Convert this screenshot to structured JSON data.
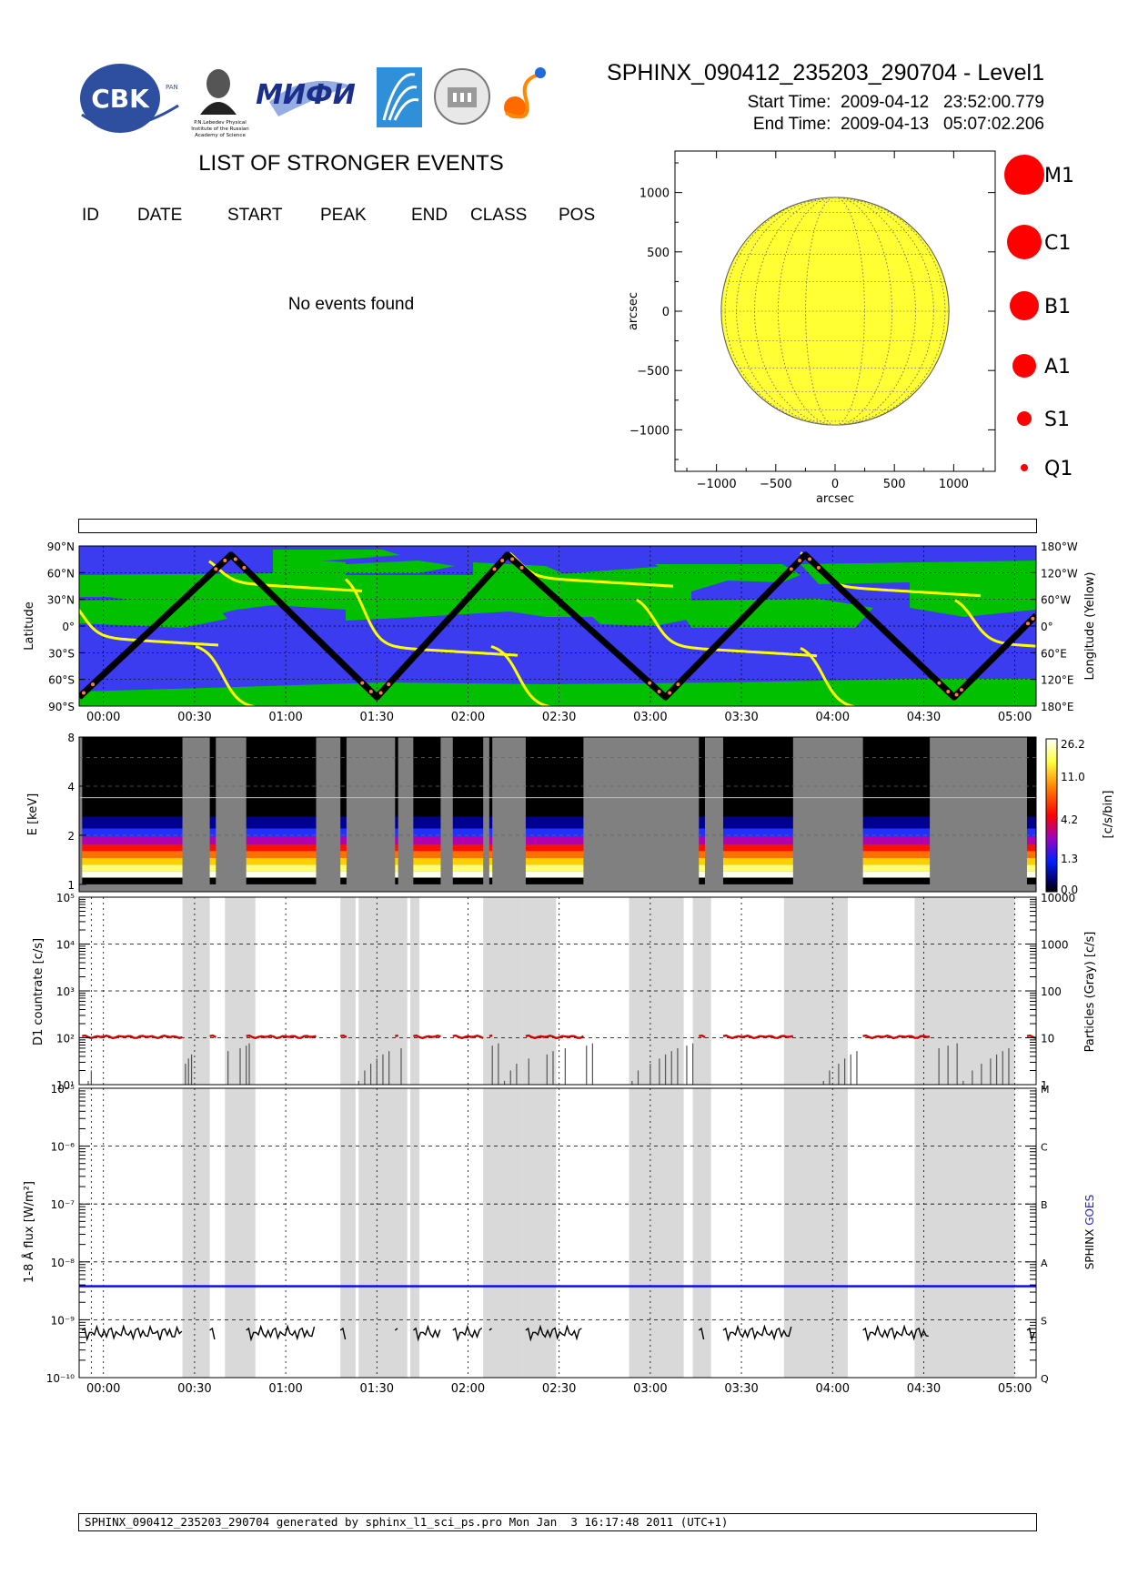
{
  "header": {
    "title": "SPHINX_090412_235203_290704 - Level1",
    "start_label": "Start Time:",
    "start_value": "2009-04-12   23:52:00.779",
    "end_label": "End Time:",
    "end_value": "2009-04-13   05:07:02.206"
  },
  "logos": {
    "cbk_text": "CBK",
    "cbk_pan": "PAN",
    "lebedev_caption": [
      "P.N.Lebedev Physical",
      "Institute of the Russian",
      "Academy of Science"
    ],
    "mifi_text": "МИФИ"
  },
  "events": {
    "title": "LIST OF STRONGER EVENTS",
    "columns": [
      "ID",
      "DATE",
      "START",
      "PEAK",
      "END",
      "CLASS",
      "POS"
    ],
    "empty_message": "No events found"
  },
  "sun_plot": {
    "xlabel": "arcsec",
    "ylabel": "arcsec",
    "ticks": [
      "-1000",
      "-500",
      "0",
      "500",
      "1000"
    ],
    "disk_color": "#ffff33"
  },
  "legend": {
    "items": [
      "M1",
      "C1",
      "B1",
      "A1",
      "S1",
      "Q1"
    ],
    "color": "#ff0000"
  },
  "time_axis": {
    "labels": [
      "00:00",
      "00:30",
      "01:00",
      "01:30",
      "02:00",
      "02:30",
      "03:00",
      "03:30",
      "04:00",
      "04:30",
      "05:00"
    ]
  },
  "chart_data": [
    {
      "type": "line",
      "name": "orbit",
      "ylabel": "Latitude",
      "y2label": "Longitude (Yellow)",
      "yticks": [
        "90°N",
        "60°N",
        "30°N",
        "0°",
        "30°S",
        "60°S",
        "90°S"
      ],
      "y2ticks": [
        "180°W",
        "120°W",
        "60°W",
        "0°",
        "60°E",
        "120°E",
        "180°E"
      ],
      "latitude_turning_points": [
        {
          "t": "23:52",
          "lat": -80
        },
        {
          "t": "00:42",
          "lat": 80
        },
        {
          "t": "01:30",
          "lat": -80
        },
        {
          "t": "02:13",
          "lat": 80
        },
        {
          "t": "03:05",
          "lat": -80
        },
        {
          "t": "03:51",
          "lat": 80
        },
        {
          "t": "04:40",
          "lat": -80
        },
        {
          "t": "05:07",
          "lat": 12
        }
      ],
      "colors": {
        "background": "#3b3bf0",
        "saa": "#00c000",
        "track": "#000000",
        "longitude": "#ffff00"
      }
    },
    {
      "type": "heatmap",
      "name": "spectrogram",
      "ylabel": "E [keV]",
      "yticks": [
        "1",
        "2",
        "4",
        "8"
      ],
      "colorbar_label": "[c/s/bin]",
      "colorbar_ticks": [
        "0.0",
        "1.3",
        "4.2",
        "11.0",
        "26.2"
      ],
      "data_intervals": [
        {
          "start": "23:53",
          "end": "00:26"
        },
        {
          "start": "00:35",
          "end": "00:37"
        },
        {
          "start": "00:47",
          "end": "01:10"
        },
        {
          "start": "01:18",
          "end": "01:20"
        },
        {
          "start": "01:36",
          "end": "01:37"
        },
        {
          "start": "01:42",
          "end": "01:51"
        },
        {
          "start": "01:55",
          "end": "02:05"
        },
        {
          "start": "02:07",
          "end": "02:08"
        },
        {
          "start": "02:19",
          "end": "02:38"
        },
        {
          "start": "03:16",
          "end": "03:18"
        },
        {
          "start": "03:24",
          "end": "03:47"
        },
        {
          "start": "04:10",
          "end": "04:32"
        },
        {
          "start": "05:04",
          "end": "05:07"
        }
      ]
    },
    {
      "type": "line",
      "name": "countrate",
      "ylabel": "D1 countrate [c/s]",
      "y2label": "Particles (Gray) [c/s]",
      "yticks": [
        "10^1",
        "10^2",
        "10^3",
        "10^4",
        "10^5"
      ],
      "y2ticks": [
        "1",
        "10",
        "100",
        "1000",
        "10000"
      ],
      "ylim": [
        10,
        100000
      ],
      "series": [
        {
          "name": "D1",
          "color": "#d00000",
          "level": 105
        }
      ]
    },
    {
      "type": "line",
      "name": "flux",
      "ylabel": "1-8 Å flux [W/m²]",
      "yticks": [
        "10^-10",
        "10^-9",
        "10^-8",
        "10^-7",
        "10^-6",
        "10^-5"
      ],
      "y2ticks": [
        "Q",
        "S",
        "A",
        "B",
        "C",
        "M"
      ],
      "ylim": [
        1e-10,
        1e-05
      ],
      "y2label_parts": [
        "SPHINX",
        "GOES"
      ],
      "series": [
        {
          "name": "SPHINX",
          "color": "#000000",
          "level": 6e-10
        },
        {
          "name": "GOES",
          "color": "#0000ff",
          "level": 3.8e-09
        }
      ]
    }
  ],
  "footer": {
    "text": "SPHINX_090412_235203_290704 generated by sphinx_l1_sci_ps.pro Mon Jan  3 16:17:48 2011 (UTC+1)"
  }
}
